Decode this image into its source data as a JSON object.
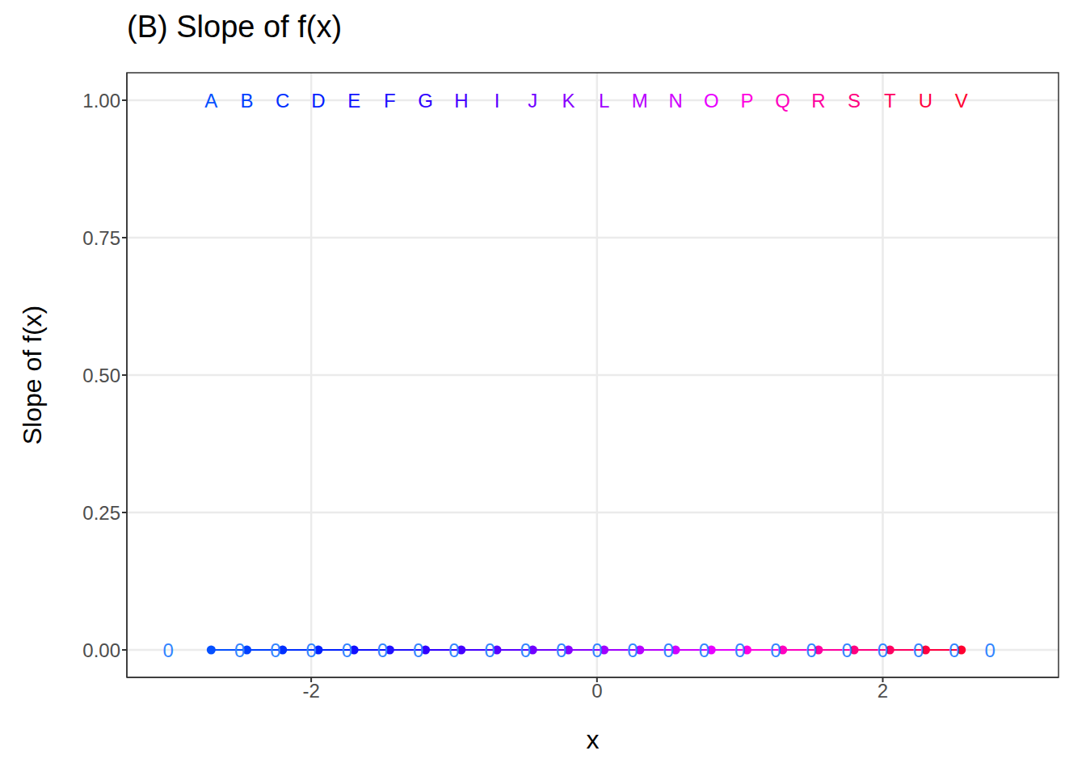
{
  "chart_data": {
    "type": "line",
    "title": "(B) Slope of f(x)",
    "x_label": "x",
    "y_label": "Slope of f(x)",
    "xlim": [
      -3.29,
      3.23
    ],
    "ylim": [
      -0.05,
      1.05
    ],
    "xticks": [
      -2,
      0,
      2
    ],
    "yticks": [
      {
        "value": 0,
        "label": "0.00"
      },
      {
        "value": 0.25,
        "label": "0.25"
      },
      {
        "value": 0.5,
        "label": "0.50"
      },
      {
        "value": 0.75,
        "label": "0.75"
      },
      {
        "value": 1,
        "label": "1.00"
      }
    ],
    "grid": true,
    "marker": "circle",
    "x": [
      -2.7,
      -2.45,
      -2.2,
      -1.95,
      -1.7,
      -1.45,
      -1.2,
      -0.95,
      -0.7,
      -0.45,
      -0.2,
      0.05,
      0.3,
      0.55,
      0.8,
      1.05,
      1.3,
      1.55,
      1.8,
      2.05,
      2.3,
      2.55
    ],
    "values": [
      0,
      0,
      0,
      0,
      0,
      0,
      0,
      0,
      0,
      0,
      0,
      0,
      0,
      0,
      0,
      0,
      0,
      0,
      0,
      0,
      0,
      0
    ],
    "colors": [
      "#0550ff",
      "#0040ff",
      "#0030ff",
      "#0020ff",
      "#1010ff",
      "#2010ff",
      "#3000ff",
      "#4500ff",
      "#5a00ff",
      "#7000ff",
      "#8800ff",
      "#a000ff",
      "#b800ff",
      "#d000ff",
      "#e800ff",
      "#ff00e0",
      "#ff00c0",
      "#ff00a0",
      "#ff0080",
      "#ff0060",
      "#ff0040",
      "#ff0030"
    ],
    "annotations": [
      {
        "text": "A",
        "x": -2.7,
        "y": 1,
        "color": "#0550ff"
      },
      {
        "text": "B",
        "x": -2.45,
        "y": 1,
        "color": "#0040ff"
      },
      {
        "text": "C",
        "x": -2.2,
        "y": 1,
        "color": "#0030ff"
      },
      {
        "text": "D",
        "x": -1.95,
        "y": 1,
        "color": "#0020ff"
      },
      {
        "text": "E",
        "x": -1.7,
        "y": 1,
        "color": "#1010ff"
      },
      {
        "text": "F",
        "x": -1.45,
        "y": 1,
        "color": "#2010ff"
      },
      {
        "text": "G",
        "x": -1.2,
        "y": 1,
        "color": "#3000ff"
      },
      {
        "text": "H",
        "x": -0.95,
        "y": 1,
        "color": "#4500ff"
      },
      {
        "text": "I",
        "x": -0.7,
        "y": 1,
        "color": "#5a00ff"
      },
      {
        "text": "J",
        "x": -0.45,
        "y": 1,
        "color": "#7000ff"
      },
      {
        "text": "K",
        "x": -0.2,
        "y": 1,
        "color": "#8800ff"
      },
      {
        "text": "L",
        "x": 0.05,
        "y": 1,
        "color": "#a000ff"
      },
      {
        "text": "M",
        "x": 0.3,
        "y": 1,
        "color": "#b800ff"
      },
      {
        "text": "N",
        "x": 0.55,
        "y": 1,
        "color": "#d000ff"
      },
      {
        "text": "O",
        "x": 0.8,
        "y": 1,
        "color": "#e800ff"
      },
      {
        "text": "P",
        "x": 1.05,
        "y": 1,
        "color": "#ff00e0"
      },
      {
        "text": "Q",
        "x": 1.3,
        "y": 1,
        "color": "#ff00c0"
      },
      {
        "text": "R",
        "x": 1.55,
        "y": 1,
        "color": "#ff00a0"
      },
      {
        "text": "S",
        "x": 1.8,
        "y": 1,
        "color": "#ff0080"
      },
      {
        "text": "T",
        "x": 2.05,
        "y": 1,
        "color": "#ff0060"
      },
      {
        "text": "U",
        "x": 2.3,
        "y": 1,
        "color": "#ff0040"
      },
      {
        "text": "V",
        "x": 2.55,
        "y": 1,
        "color": "#ff0030"
      },
      {
        "text": "0",
        "x": -3,
        "y": 0,
        "color": "#3385ff"
      },
      {
        "text": "0",
        "x": -2.5,
        "y": 0,
        "color": "#3385ff"
      },
      {
        "text": "0",
        "x": -2.25,
        "y": 0,
        "color": "#3385ff"
      },
      {
        "text": "0",
        "x": -2,
        "y": 0,
        "color": "#3385ff"
      },
      {
        "text": "0",
        "x": -1.75,
        "y": 0,
        "color": "#3385ff"
      },
      {
        "text": "0",
        "x": -1.5,
        "y": 0,
        "color": "#3385ff"
      },
      {
        "text": "0",
        "x": -1.25,
        "y": 0,
        "color": "#3385ff"
      },
      {
        "text": "0",
        "x": -1,
        "y": 0,
        "color": "#3385ff"
      },
      {
        "text": "0",
        "x": -0.75,
        "y": 0,
        "color": "#3385ff"
      },
      {
        "text": "0",
        "x": -0.5,
        "y": 0,
        "color": "#3385ff"
      },
      {
        "text": "0",
        "x": -0.25,
        "y": 0,
        "color": "#3385ff"
      },
      {
        "text": "0",
        "x": 0,
        "y": 0,
        "color": "#3385ff"
      },
      {
        "text": "0",
        "x": 0.25,
        "y": 0,
        "color": "#3385ff"
      },
      {
        "text": "0",
        "x": 0.5,
        "y": 0,
        "color": "#3385ff"
      },
      {
        "text": "0",
        "x": 0.75,
        "y": 0,
        "color": "#3385ff"
      },
      {
        "text": "0",
        "x": 1,
        "y": 0,
        "color": "#3385ff"
      },
      {
        "text": "0",
        "x": 1.25,
        "y": 0,
        "color": "#3385ff"
      },
      {
        "text": "0",
        "x": 1.5,
        "y": 0,
        "color": "#3385ff"
      },
      {
        "text": "0",
        "x": 1.75,
        "y": 0,
        "color": "#3385ff"
      },
      {
        "text": "0",
        "x": 2,
        "y": 0,
        "color": "#3385ff"
      },
      {
        "text": "0",
        "x": 2.25,
        "y": 0,
        "color": "#3385ff"
      },
      {
        "text": "0",
        "x": 2.5,
        "y": 0,
        "color": "#3385ff"
      },
      {
        "text": "0",
        "x": 2.75,
        "y": 0,
        "color": "#3385ff"
      }
    ]
  }
}
